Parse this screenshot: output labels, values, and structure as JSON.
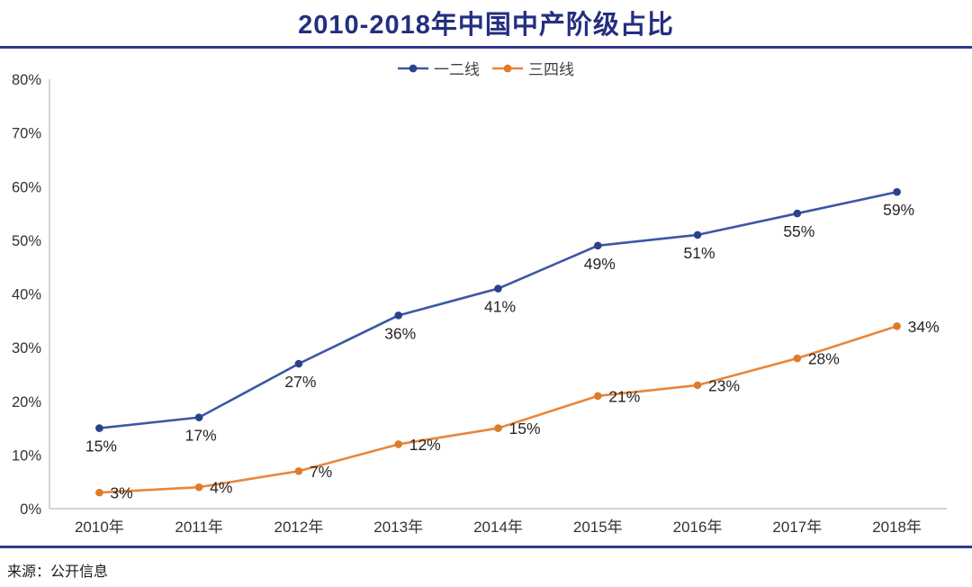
{
  "header": {
    "title": "2010-2018年中国中产阶级占比"
  },
  "footer": {
    "source": "来源：公开信息"
  },
  "colors": {
    "title": "#232F80",
    "divider": "#2F3A8A",
    "axis": "#C6C6C6",
    "tick_text": "#333333",
    "data_label": "#262626",
    "legend_text": "#3F3F3F",
    "source_text": "#1A1A1A",
    "background": "#FFFFFF",
    "series1": "#3D57A5",
    "series2": "#E8863B"
  },
  "chart_data": {
    "type": "line",
    "title": "2010-2018年中国中产阶级占比",
    "categories": [
      "2010年",
      "2011年",
      "2012年",
      "2013年",
      "2014年",
      "2015年",
      "2016年",
      "2017年",
      "2018年"
    ],
    "series": [
      {
        "name": "一二线",
        "color": "#3D57A5",
        "marker_color": "#2B418C",
        "values": [
          15,
          17,
          27,
          36,
          41,
          49,
          51,
          55,
          59
        ],
        "data_labels": [
          "15%",
          "17%",
          "27%",
          "36%",
          "41%",
          "49%",
          "51%",
          "55%",
          "59%"
        ],
        "label_placement": "below"
      },
      {
        "name": "三四线",
        "color": "#E8863B",
        "marker_color": "#DE7B28",
        "values": [
          3,
          4,
          7,
          12,
          15,
          21,
          23,
          28,
          34
        ],
        "data_labels": [
          "3%",
          "4%",
          "7%",
          "12%",
          "15%",
          "21%",
          "23%",
          "28%",
          "34%"
        ],
        "label_placement": "right"
      }
    ],
    "ylim": [
      0,
      80
    ],
    "ytick_labels": [
      "0%",
      "10%",
      "20%",
      "30%",
      "40%",
      "50%",
      "60%",
      "70%",
      "80%"
    ],
    "xlabel": "",
    "ylabel": "",
    "legend_position": "top",
    "grid": false,
    "data_labels_shown": true
  }
}
